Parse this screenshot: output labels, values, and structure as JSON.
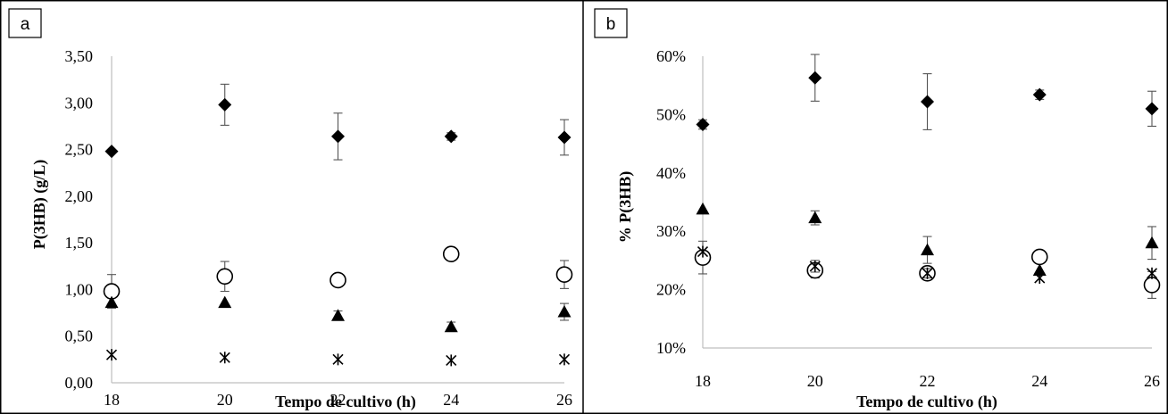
{
  "chart_data": [
    {
      "type": "scatter",
      "panel_label": "a",
      "xlabel": "Tempo de cultivo (h)",
      "ylabel": "P(3HB) (g/L)",
      "x": [
        18,
        20,
        22,
        24,
        26
      ],
      "xlim": [
        18,
        26
      ],
      "ylim": [
        0,
        3.5
      ],
      "x_ticks": [
        "18",
        "20",
        "22",
        "24",
        "26"
      ],
      "y_ticks": [
        "0,00",
        "0,50",
        "1,00",
        "1,50",
        "2,00",
        "2,50",
        "3,00",
        "3,50"
      ],
      "grid": false,
      "series": [
        {
          "marker": "diamond",
          "values": [
            2.48,
            2.98,
            2.64,
            2.64,
            2.63
          ],
          "errors": [
            0.0,
            0.22,
            0.25,
            0.04,
            0.19
          ]
        },
        {
          "marker": "circle",
          "values": [
            0.98,
            1.14,
            1.1,
            1.38,
            1.16
          ],
          "errors": [
            0.18,
            0.16,
            0.0,
            0.0,
            0.15
          ]
        },
        {
          "marker": "triangle",
          "values": [
            0.86,
            0.86,
            0.72,
            0.6,
            0.76
          ],
          "errors": [
            0.0,
            0.0,
            0.05,
            0.05,
            0.09
          ]
        },
        {
          "marker": "asterisk",
          "values": [
            0.3,
            0.27,
            0.25,
            0.24,
            0.25
          ],
          "errors": [
            0.0,
            0.0,
            0.0,
            0.0,
            0.0
          ]
        }
      ]
    },
    {
      "type": "scatter",
      "panel_label": "b",
      "xlabel": "Tempo de cultivo (h)",
      "ylabel": "% P(3HB)",
      "x": [
        18,
        20,
        22,
        24,
        26
      ],
      "xlim": [
        18,
        26
      ],
      "ylim": [
        10,
        60
      ],
      "x_ticks": [
        "18",
        "20",
        "22",
        "24",
        "26"
      ],
      "y_ticks": [
        "10%",
        "20%",
        "30%",
        "40%",
        "50%",
        "60%"
      ],
      "grid": false,
      "series": [
        {
          "marker": "diamond",
          "values": [
            48.3,
            56.3,
            52.2,
            53.4,
            51.0
          ],
          "errors": [
            0.8,
            4.0,
            4.8,
            0.8,
            3.0
          ]
        },
        {
          "marker": "triangle",
          "values": [
            33.8,
            32.3,
            26.8,
            23.3,
            28.0
          ],
          "errors": [
            0.0,
            1.2,
            2.3,
            0.0,
            2.8
          ]
        },
        {
          "marker": "circle",
          "values": [
            25.5,
            23.3,
            22.8,
            25.6,
            20.8
          ],
          "errors": [
            2.8,
            1.3,
            0.0,
            0.0,
            2.3
          ]
        },
        {
          "marker": "asterisk",
          "values": [
            26.5,
            24.0,
            22.8,
            22.0,
            22.8
          ],
          "errors": [
            0.0,
            1.0,
            0.8,
            0.0,
            0.0
          ]
        }
      ]
    }
  ]
}
